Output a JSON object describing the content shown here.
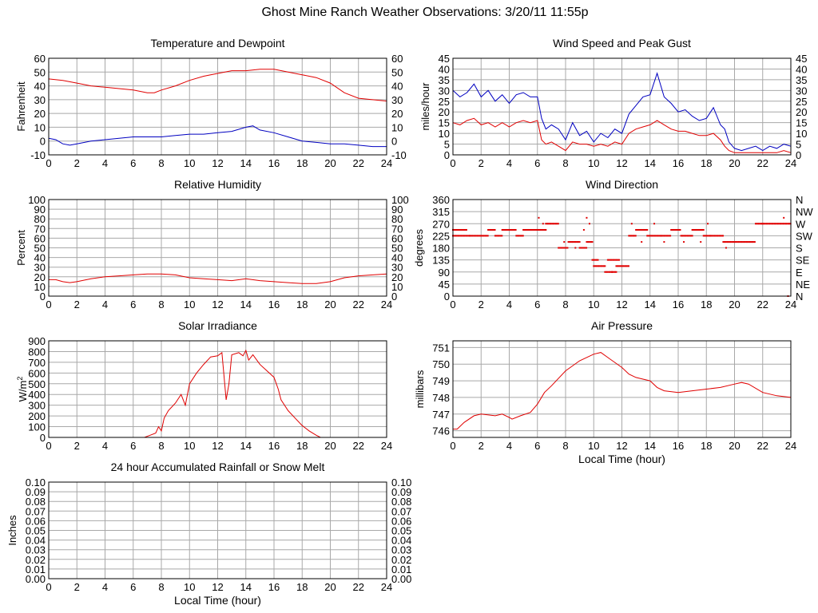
{
  "page": {
    "title": "Ghost Mine Ranch Weather Observations: 3/20/11 11:55p"
  },
  "chart_data": [
    {
      "id": "temp",
      "type": "line",
      "title": "Temperature and Dewpoint",
      "ylabel": "Fahrenheit",
      "xlabel": "",
      "xlim": [
        0,
        24
      ],
      "ylim": [
        -10,
        60
      ],
      "x_ticks": [
        0,
        2,
        4,
        6,
        8,
        10,
        12,
        14,
        16,
        18,
        20,
        22,
        24
      ],
      "y_ticks": [
        -10,
        0,
        10,
        20,
        30,
        40,
        50,
        60
      ],
      "y_tick_labels_right": [
        "-10",
        "0",
        "10",
        "20",
        "30",
        "40",
        "50",
        "60"
      ],
      "grid": true,
      "series": [
        {
          "color": "#e00000",
          "x": [
            0,
            1,
            2,
            3,
            4,
            5,
            6,
            7,
            7.5,
            8,
            9,
            10,
            11,
            12,
            13,
            14,
            15,
            16,
            17,
            18,
            19,
            20,
            21,
            22,
            23,
            24
          ],
          "values": [
            45,
            44,
            42,
            40,
            39,
            38,
            37,
            35,
            35,
            37,
            40,
            44,
            47,
            49,
            51,
            51,
            52,
            52,
            50,
            48,
            46,
            42,
            35,
            31,
            30,
            29
          ]
        },
        {
          "color": "#0000c0",
          "x": [
            0,
            0.5,
            1,
            1.5,
            2,
            3,
            4,
            5,
            6,
            7,
            8,
            9,
            10,
            11,
            12,
            13,
            14,
            14.5,
            15,
            16,
            17,
            18,
            19,
            20,
            21,
            22,
            23,
            24
          ],
          "values": [
            2,
            1,
            -2,
            -3,
            -2,
            0,
            1,
            2,
            3,
            3,
            3,
            4,
            5,
            5,
            6,
            7,
            10,
            11,
            8,
            6,
            3,
            0,
            -1,
            -2,
            -2,
            -3,
            -4,
            -4
          ]
        }
      ]
    },
    {
      "id": "wind",
      "type": "line",
      "title": "Wind Speed and Peak Gust",
      "ylabel": "miles/hour",
      "xlabel": "",
      "xlim": [
        0,
        24
      ],
      "ylim": [
        0,
        45
      ],
      "x_ticks": [
        0,
        2,
        4,
        6,
        8,
        10,
        12,
        14,
        16,
        18,
        20,
        22,
        24
      ],
      "y_ticks": [
        0,
        5,
        10,
        15,
        20,
        25,
        30,
        35,
        40,
        45
      ],
      "y_tick_labels_right": [
        "0",
        "5",
        "10",
        "15",
        "20",
        "25",
        "30",
        "35",
        "40",
        "45"
      ],
      "grid": true,
      "series": [
        {
          "color": "#0000c0",
          "x": [
            0,
            0.5,
            1,
            1.5,
            2,
            2.5,
            3,
            3.5,
            4,
            4.5,
            5,
            5.5,
            6,
            6.3,
            6.6,
            7,
            7.5,
            8,
            8.5,
            9,
            9.5,
            10,
            10.5,
            11,
            11.5,
            12,
            12.5,
            13,
            13.5,
            14,
            14.5,
            15,
            15.5,
            16,
            16.5,
            17,
            17.5,
            18,
            18.5,
            19,
            19.3,
            19.6,
            20,
            20.5,
            21,
            21.5,
            22,
            22.5,
            23,
            23.5,
            24
          ],
          "values": [
            30,
            27,
            29,
            33,
            27,
            30,
            25,
            28,
            24,
            28,
            29,
            27,
            27,
            17,
            12,
            14,
            12,
            7,
            15,
            9,
            11,
            6,
            10,
            8,
            12,
            10,
            19,
            23,
            27,
            28,
            38,
            27,
            24,
            20,
            21,
            18,
            16,
            17,
            22,
            14,
            12,
            6,
            3,
            2,
            3,
            4,
            2,
            4,
            3,
            5,
            4
          ]
        },
        {
          "color": "#e00000",
          "x": [
            0,
            0.5,
            1,
            1.5,
            2,
            2.5,
            3,
            3.5,
            4,
            4.5,
            5,
            5.5,
            6,
            6.3,
            6.6,
            7,
            7.5,
            8,
            8.5,
            9,
            9.5,
            10,
            10.5,
            11,
            11.5,
            12,
            12.5,
            13,
            13.5,
            14,
            14.5,
            15,
            15.5,
            16,
            16.5,
            17,
            17.5,
            18,
            18.5,
            19,
            19.3,
            19.6,
            20,
            20.5,
            21,
            21.5,
            22,
            22.5,
            23,
            23.5,
            24
          ],
          "values": [
            15,
            14,
            16,
            17,
            14,
            15,
            13,
            15,
            13,
            15,
            16,
            15,
            16,
            7,
            5,
            6,
            4,
            2,
            6,
            5,
            5,
            4,
            5,
            4,
            6,
            5,
            10,
            12,
            13,
            14,
            16,
            14,
            12,
            11,
            11,
            10,
            9,
            9,
            10,
            7,
            4,
            2,
            1,
            1,
            1,
            1,
            1,
            1,
            1,
            2,
            1
          ]
        }
      ]
    },
    {
      "id": "rh",
      "type": "line",
      "title": "Relative Humidity",
      "ylabel": "Percent",
      "xlabel": "",
      "xlim": [
        0,
        24
      ],
      "ylim": [
        0,
        100
      ],
      "x_ticks": [
        0,
        2,
        4,
        6,
        8,
        10,
        12,
        14,
        16,
        18,
        20,
        22,
        24
      ],
      "y_ticks": [
        0,
        10,
        20,
        30,
        40,
        50,
        60,
        70,
        80,
        90,
        100
      ],
      "y_tick_labels_right": [
        "0",
        "10",
        "20",
        "30",
        "40",
        "50",
        "60",
        "70",
        "80",
        "90",
        "100"
      ],
      "grid": true,
      "series": [
        {
          "color": "#e00000",
          "x": [
            0,
            0.5,
            1,
            1.5,
            2,
            3,
            4,
            5,
            6,
            7,
            8,
            9,
            10,
            11,
            12,
            13,
            14,
            15,
            16,
            17,
            18,
            19,
            20,
            21,
            22,
            23,
            24
          ],
          "values": [
            17,
            17,
            15,
            14,
            15,
            18,
            20,
            21,
            22,
            23,
            23,
            22,
            19,
            18,
            17,
            16,
            18,
            16,
            15,
            14,
            13,
            13,
            15,
            19,
            21,
            22,
            23
          ]
        }
      ]
    },
    {
      "id": "winddir",
      "type": "scatter",
      "title": "Wind Direction",
      "ylabel": "degrees",
      "xlabel": "",
      "xlim": [
        0,
        24
      ],
      "ylim": [
        0,
        360
      ],
      "x_ticks": [
        0,
        2,
        4,
        6,
        8,
        10,
        12,
        14,
        16,
        18,
        20,
        22,
        24
      ],
      "y_ticks": [
        0,
        45,
        90,
        135,
        180,
        225,
        270,
        315,
        360
      ],
      "y_tick_labels_right": [
        "N",
        "NE",
        "E",
        "SE",
        "S",
        "SW",
        "W",
        "NW",
        "N"
      ],
      "grid": true,
      "series": [
        {
          "color": "#e00000",
          "runs": [
            [
              0,
              1.2,
              225
            ],
            [
              0,
              1.0,
              247
            ],
            [
              1.2,
              2.5,
              225
            ],
            [
              2.5,
              3.0,
              247
            ],
            [
              3.0,
              3.5,
              225
            ],
            [
              3.5,
              4.5,
              247
            ],
            [
              4.5,
              5.0,
              225
            ],
            [
              5.0,
              6.2,
              247
            ],
            [
              6.2,
              6.6,
              247
            ],
            [
              6.6,
              7.5,
              270
            ],
            [
              7.5,
              8.2,
              180
            ],
            [
              8.2,
              9.0,
              202
            ],
            [
              9.0,
              9.5,
              180
            ],
            [
              9.5,
              9.9,
              202
            ],
            [
              9.9,
              10.3,
              135
            ],
            [
              10.0,
              10.8,
              112
            ],
            [
              10.8,
              11.6,
              90
            ],
            [
              11.0,
              11.8,
              135
            ],
            [
              11.6,
              12.5,
              112
            ],
            [
              12.5,
              13.0,
              225
            ],
            [
              13.0,
              13.8,
              247
            ],
            [
              13.8,
              14.8,
              225
            ],
            [
              14.8,
              15.5,
              225
            ],
            [
              15.5,
              16.2,
              247
            ],
            [
              16.2,
              17.0,
              225
            ],
            [
              17.0,
              17.8,
              247
            ],
            [
              17.8,
              18.3,
              225
            ],
            [
              18.3,
              19.2,
              225
            ],
            [
              19.2,
              21.5,
              202
            ],
            [
              21.5,
              24.0,
              270
            ]
          ],
          "x": [
            6.1,
            6.4,
            7.9,
            8.7,
            9.3,
            9.5,
            9.7,
            11.3,
            12.7,
            13.4,
            14.3,
            15.0,
            16.4,
            17.6,
            18.1,
            19.4,
            22.0,
            23.5,
            23.8
          ],
          "values": [
            292,
            270,
            202,
            180,
            247,
            292,
            270,
            90,
            270,
            202,
            270,
            202,
            202,
            202,
            270,
            180,
            270,
            292,
            0
          ]
        }
      ]
    },
    {
      "id": "solar",
      "type": "line",
      "title": "Solar Irradiance",
      "ylabel": "W/m2",
      "xlabel": "",
      "xlim": [
        0,
        24
      ],
      "ylim": [
        0,
        900
      ],
      "x_ticks": [
        0,
        2,
        4,
        6,
        8,
        10,
        12,
        14,
        16,
        18,
        20,
        22,
        24
      ],
      "y_ticks": [
        0,
        100,
        200,
        300,
        400,
        500,
        600,
        700,
        800,
        900
      ],
      "grid": true,
      "series": [
        {
          "color": "#e00000",
          "x": [
            0,
            6.8,
            7.2,
            7.6,
            7.8,
            8.0,
            8.2,
            8.5,
            9.0,
            9.4,
            9.7,
            10.0,
            10.5,
            11.0,
            11.5,
            12.0,
            12.3,
            12.5,
            12.6,
            12.8,
            13.0,
            13.5,
            13.8,
            14.0,
            14.2,
            14.5,
            15.0,
            15.5,
            16.0,
            16.3,
            16.5,
            17.0,
            17.5,
            18.0,
            18.5,
            19.0,
            19.3,
            24
          ],
          "values": [
            0,
            0,
            20,
            40,
            100,
            60,
            180,
            250,
            320,
            400,
            300,
            500,
            600,
            680,
            750,
            760,
            790,
            500,
            350,
            500,
            770,
            790,
            760,
            810,
            720,
            770,
            680,
            620,
            560,
            450,
            350,
            250,
            180,
            110,
            60,
            20,
            0,
            0
          ]
        }
      ]
    },
    {
      "id": "pressure",
      "type": "line",
      "title": "Air Pressure",
      "ylabel": "millibars",
      "xlabel": "Local Time (hour)",
      "xlim": [
        0,
        24
      ],
      "ylim": [
        745.6,
        751.4
      ],
      "x_ticks": [
        0,
        2,
        4,
        6,
        8,
        10,
        12,
        14,
        16,
        18,
        20,
        22,
        24
      ],
      "y_ticks": [
        746,
        747,
        748,
        749,
        750,
        751
      ],
      "grid": true,
      "series": [
        {
          "color": "#e00000",
          "x": [
            0,
            0.3,
            0.8,
            1.5,
            2,
            3,
            3.5,
            4,
            4.2,
            4.8,
            5.5,
            6,
            6.5,
            7,
            8,
            9,
            10,
            10.5,
            11,
            12,
            12.5,
            13,
            13.5,
            14,
            14.5,
            15,
            16,
            17,
            18,
            19,
            20,
            20.5,
            21,
            22,
            23,
            24
          ],
          "values": [
            746.1,
            746.1,
            746.5,
            746.9,
            747.0,
            746.9,
            747.0,
            746.8,
            746.7,
            746.9,
            747.1,
            747.6,
            748.3,
            748.7,
            749.6,
            750.2,
            750.6,
            750.7,
            750.4,
            749.8,
            749.4,
            749.2,
            749.1,
            749.0,
            748.6,
            748.4,
            748.3,
            748.4,
            748.5,
            748.6,
            748.8,
            748.9,
            748.8,
            748.3,
            748.1,
            748.0
          ]
        }
      ]
    },
    {
      "id": "rain",
      "type": "line",
      "title": "24 hour Accumulated Rainfall or Snow Melt",
      "ylabel": "Inches",
      "xlabel": "Local Time (hour)",
      "xlim": [
        0,
        24
      ],
      "ylim": [
        0,
        0.1
      ],
      "x_ticks": [
        0,
        2,
        4,
        6,
        8,
        10,
        12,
        14,
        16,
        18,
        20,
        22,
        24
      ],
      "y_ticks": [
        0,
        0.01,
        0.02,
        0.03,
        0.04,
        0.05,
        0.06,
        0.07,
        0.08,
        0.09,
        0.1
      ],
      "y_tick_labels": [
        "0.00",
        "0.01",
        "0.02",
        "0.03",
        "0.04",
        "0.05",
        "0.06",
        "0.07",
        "0.08",
        "0.09",
        "0.10"
      ],
      "y_tick_labels_right": [
        "0.00",
        "0.01",
        "0.02",
        "0.03",
        "0.04",
        "0.05",
        "0.06",
        "0.07",
        "0.08",
        "0.09",
        "0.10"
      ],
      "grid": true,
      "series": [
        {
          "color": "#e00000",
          "x": [
            0,
            24
          ],
          "values": [
            0,
            0
          ]
        }
      ]
    }
  ]
}
